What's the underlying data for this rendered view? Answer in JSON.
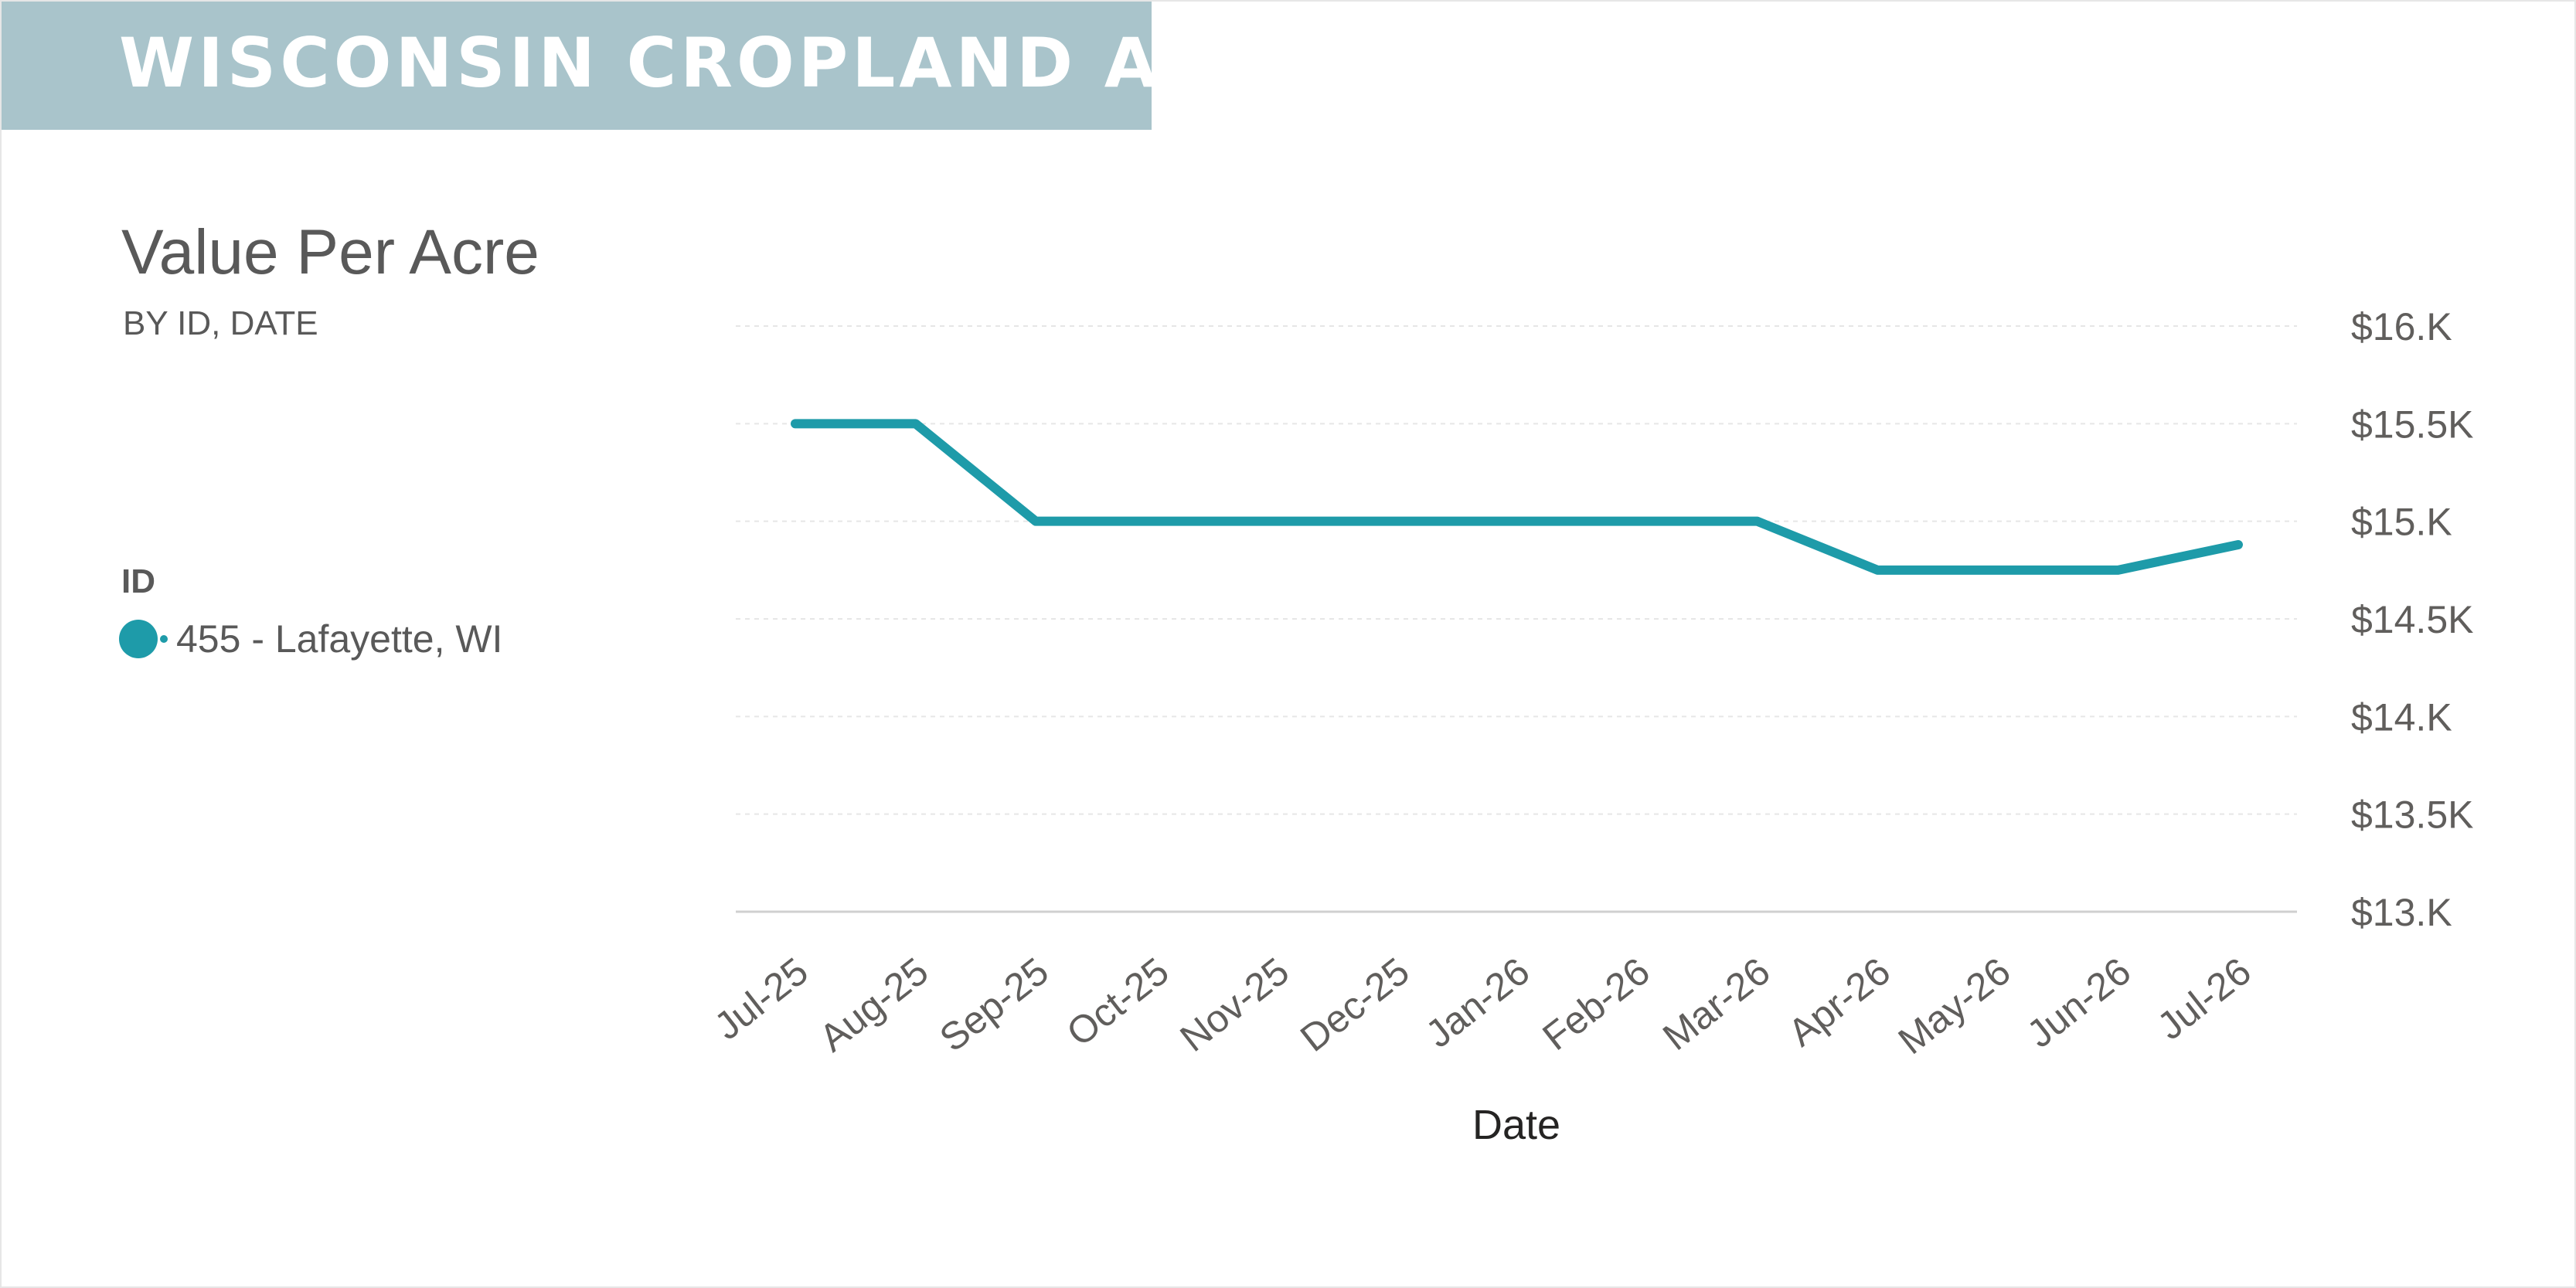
{
  "banner": {
    "title": "WISCONSIN CROPLAND A"
  },
  "colors": {
    "banner_bg": "#a9c4cb",
    "series": "#1e9ba9",
    "text": "#595959",
    "grid": "#e6e6e6"
  },
  "chart_data": {
    "type": "line",
    "title": "Value Per Acre",
    "subtitle": "BY ID, DATE",
    "xlabel": "Date",
    "ylabel": "",
    "categories": [
      "Jul-25",
      "Aug-25",
      "Sep-25",
      "Oct-25",
      "Nov-25",
      "Dec-25",
      "Jan-26",
      "Feb-26",
      "Mar-26",
      "Apr-26",
      "May-26",
      "Jun-26",
      "Jul-26"
    ],
    "series": [
      {
        "name": "455 - Lafayette, WI",
        "color": "#1e9ba9",
        "values": [
          15500,
          15500,
          15000,
          15000,
          15000,
          15000,
          15000,
          15000,
          15000,
          14750,
          14750,
          14750,
          14880
        ]
      }
    ],
    "ylim": [
      13000,
      16000
    ],
    "yticks": [
      13000,
      13500,
      14000,
      14500,
      15000,
      15500,
      16000
    ],
    "ytick_labels": [
      "$13.K",
      "$13.5K",
      "$14.K",
      "$14.5K",
      "$15.K",
      "$15.5K",
      "$16.K"
    ],
    "y_axis_position": "right",
    "grid": true,
    "legend": {
      "title": "ID",
      "position": "left"
    }
  }
}
